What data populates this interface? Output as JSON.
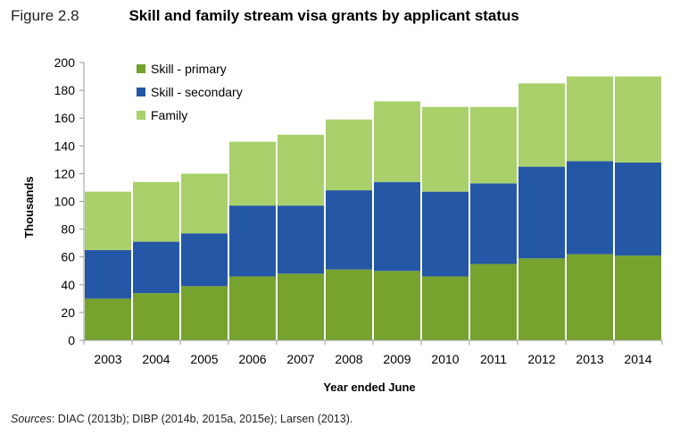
{
  "figure": {
    "label": "Figure 2.8",
    "title": "Skill and family stream visa grants by applicant status",
    "sources_label": "Sources",
    "sources_text": ": DIAC (2013b); DIBP (2014b, 2015a, 2015e); Larsen (2013)."
  },
  "colors": {
    "skill_primary": "#76a22e",
    "skill_secondary": "#2457a6",
    "family": "#a9d06b",
    "axis": "#9a9a9a"
  },
  "chart_data": {
    "type": "bar",
    "stacked": true,
    "title": "",
    "xlabel": "Year ended June",
    "ylabel": "Thousands",
    "ylim": [
      0,
      200
    ],
    "yticks": [
      0,
      20,
      40,
      60,
      80,
      100,
      120,
      140,
      160,
      180,
      200
    ],
    "grid": false,
    "legend_position": "top-left",
    "categories": [
      "2003",
      "2004",
      "2005",
      "2006",
      "2007",
      "2008",
      "2009",
      "2010",
      "2011",
      "2012",
      "2013",
      "2014"
    ],
    "series": [
      {
        "name": "Skill - primary",
        "color_key": "skill_primary",
        "values": [
          30,
          34,
          39,
          46,
          48,
          51,
          50,
          46,
          55,
          59,
          62,
          61
        ]
      },
      {
        "name": "Skill - secondary",
        "color_key": "skill_secondary",
        "values": [
          35,
          37,
          38,
          51,
          49,
          57,
          64,
          61,
          58,
          66,
          67,
          67
        ]
      },
      {
        "name": "Family",
        "color_key": "family",
        "values": [
          42,
          43,
          43,
          46,
          51,
          51,
          58,
          61,
          55,
          60,
          61,
          62
        ]
      }
    ]
  }
}
